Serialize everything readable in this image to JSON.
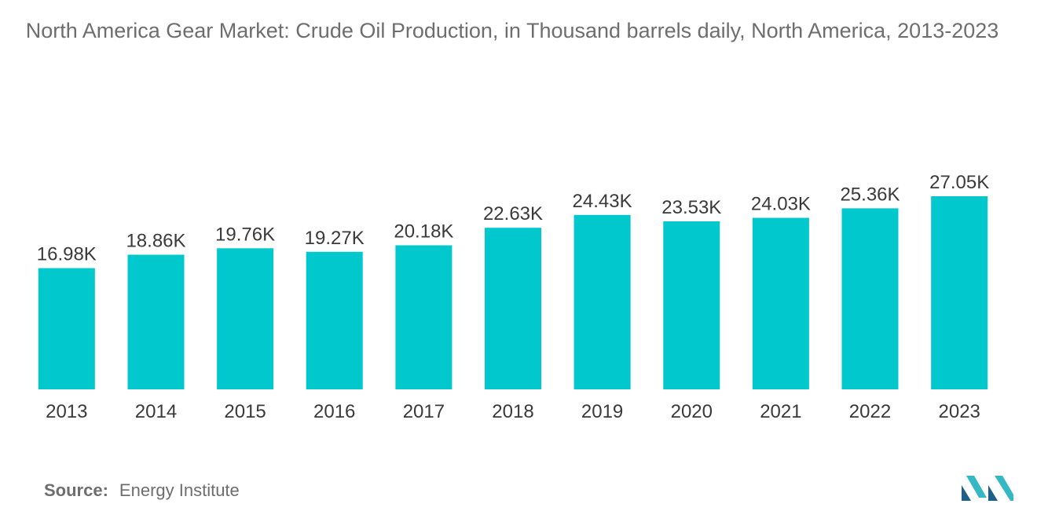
{
  "chart_data": {
    "type": "bar",
    "title": "North America Gear Market: Crude Oil Production, in Thousand barrels daily, North America, 2013-2023",
    "categories": [
      "2013",
      "2014",
      "2015",
      "2016",
      "2017",
      "2018",
      "2019",
      "2020",
      "2021",
      "2022",
      "2023"
    ],
    "values": [
      16.98,
      18.86,
      19.76,
      19.27,
      20.18,
      22.63,
      24.43,
      23.53,
      24.03,
      25.36,
      27.05
    ],
    "data_labels": [
      "16.98K",
      "18.86K",
      "19.76K",
      "19.27K",
      "20.18K",
      "22.63K",
      "24.43K",
      "23.53K",
      "24.03K",
      "25.36K",
      "27.05K"
    ],
    "xlabel": "",
    "ylabel": "",
    "ylim": [
      0,
      27.05
    ],
    "grid": false,
    "legend": "none",
    "bar_color": "#00c8cc"
  },
  "source": {
    "label": "Source:",
    "value": "Energy Institute"
  },
  "logo": {
    "icon": "mordor-intelligence-logo-icon",
    "colors": [
      "#1e5e8a",
      "#36b8c4"
    ]
  }
}
